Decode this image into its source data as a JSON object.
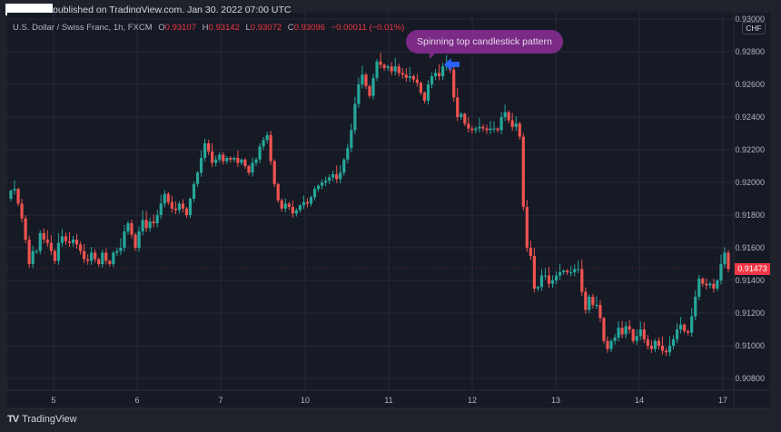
{
  "header": {
    "published_text": "published on TradingView.com, Jan 30, 2022 07:00 UTC"
  },
  "legend": {
    "symbol": "U.S. Dollar / Swiss Franc, 1h, FXCM",
    "open_label": "O",
    "open": "0.93107",
    "high_label": "H",
    "high": "0.93142",
    "low_label": "L",
    "low": "0.93072",
    "close_label": "C",
    "close": "0.93096",
    "change": "−0.00011 (−0.01%)"
  },
  "annotation": {
    "text": "Spinning top candlestick pattern",
    "bubble_color": "#7b2a86",
    "arrow_color": "#2962ff"
  },
  "price_axis": {
    "currency": "CHF",
    "top_partial": "0.93000",
    "last_price": "0.91473",
    "last_price_color": "#f23645"
  },
  "footer": {
    "brand": "TradingView",
    "logo": "TV"
  },
  "colors": {
    "up": "#26a69a",
    "down": "#ef5350",
    "background": "#161a25",
    "outer": "#1f222b",
    "grid": "#262a36"
  },
  "chart_data": {
    "type": "candlestick",
    "title": "U.S. Dollar / Swiss Franc, 1h, FXCM",
    "xlabel": "",
    "ylabel": "CHF",
    "ylim": [
      0.907,
      0.93
    ],
    "grid": true,
    "y_ticks": [
      "0.93000",
      "0.92800",
      "0.92600",
      "0.92400",
      "0.92200",
      "0.92000",
      "0.91800",
      "0.91600",
      "0.91400",
      "0.91200",
      "0.91000",
      "0.90800"
    ],
    "x_ticks": [
      "5",
      "6",
      "7",
      "10",
      "11",
      "12",
      "13",
      "14",
      "17"
    ],
    "annotation": "Spinning top candlestick pattern",
    "last_price": 0.91473,
    "closes": [
      0.9195,
      0.9196,
      0.9187,
      0.9178,
      0.9165,
      0.915,
      0.9158,
      0.9158,
      0.9169,
      0.9165,
      0.9163,
      0.9158,
      0.9152,
      0.9163,
      0.9167,
      0.9164,
      0.9163,
      0.9165,
      0.9162,
      0.9158,
      0.9153,
      0.9152,
      0.9157,
      0.9153,
      0.915,
      0.9157,
      0.9152,
      0.915,
      0.9157,
      0.9158,
      0.916,
      0.917,
      0.9175,
      0.9168,
      0.916,
      0.917,
      0.9177,
      0.9172,
      0.9176,
      0.9175,
      0.918,
      0.9187,
      0.9193,
      0.9188,
      0.9184,
      0.9183,
      0.9187,
      0.9184,
      0.918,
      0.919,
      0.9199,
      0.9206,
      0.9215,
      0.9224,
      0.9219,
      0.9212,
      0.9214,
      0.9217,
      0.9213,
      0.9215,
      0.9214,
      0.9215,
      0.9212,
      0.9214,
      0.921,
      0.9206,
      0.9212,
      0.9214,
      0.9222,
      0.9226,
      0.9229,
      0.9213,
      0.9199,
      0.9189,
      0.9184,
      0.9187,
      0.9185,
      0.9181,
      0.9183,
      0.9186,
      0.9188,
      0.9187,
      0.9191,
      0.9196,
      0.9198,
      0.92,
      0.9201,
      0.9203,
      0.9205,
      0.9202,
      0.9206,
      0.9214,
      0.9221,
      0.9232,
      0.9248,
      0.926,
      0.9266,
      0.9259,
      0.9253,
      0.9264,
      0.9274,
      0.9272,
      0.927,
      0.9271,
      0.9268,
      0.9271,
      0.9267,
      0.9266,
      0.9264,
      0.9265,
      0.9263,
      0.9261,
      0.9255,
      0.925,
      0.926,
      0.9265,
      0.9267,
      0.9265,
      0.9271,
      0.9272,
      0.9269,
      0.9252,
      0.924,
      0.9242,
      0.9236,
      0.9233,
      0.9232,
      0.9233,
      0.9234,
      0.9233,
      0.9232,
      0.9233,
      0.9233,
      0.9232,
      0.924,
      0.9243,
      0.9238,
      0.9234,
      0.9236,
      0.9228,
      0.9185,
      0.916,
      0.9155,
      0.9135,
      0.9136,
      0.9143,
      0.9143,
      0.9138,
      0.914,
      0.9143,
      0.9145,
      0.9146,
      0.9145,
      0.9145,
      0.9147,
      0.9147,
      0.9133,
      0.9122,
      0.913,
      0.9125,
      0.9125,
      0.9117,
      0.9103,
      0.9098,
      0.9103,
      0.9105,
      0.9111,
      0.9107,
      0.9112,
      0.911,
      0.9103,
      0.9106,
      0.911,
      0.9104,
      0.91,
      0.9098,
      0.9103,
      0.91,
      0.9097,
      0.9096,
      0.91,
      0.9104,
      0.911,
      0.9113,
      0.9109,
      0.9108,
      0.9118,
      0.913,
      0.9141,
      0.9138,
      0.9137,
      0.9138,
      0.9135,
      0.914,
      0.915,
      0.9157,
      0.9147
    ]
  }
}
